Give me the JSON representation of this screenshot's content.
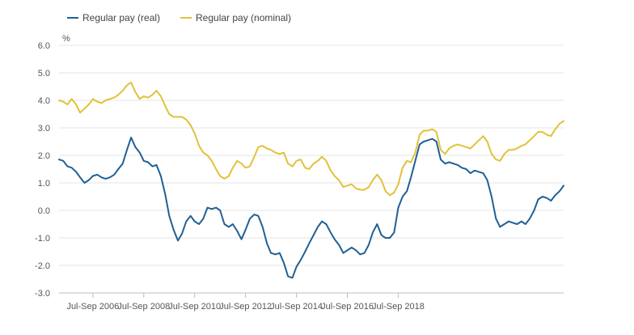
{
  "chart_data": {
    "type": "line",
    "ylabel": "%",
    "ylim": [
      -3.0,
      6.0
    ],
    "yticks": [
      "6.0",
      "5.0",
      "4.0",
      "3.0",
      "2.0",
      "1.0",
      "0.0",
      "-1.0",
      "-2.0",
      "-3.0"
    ],
    "xticks": [
      "Jul-Sep 2006",
      "Jul-Sep 2008",
      "Jul-Sep 2010",
      "Jul-Sep 2012",
      "Jul-Sep 2014",
      "Jul-Sep 2016",
      "Jul-Sep 2018"
    ],
    "grid": "horizontal",
    "legend": "top-left",
    "series": [
      {
        "name": "Regular pay (real)",
        "color": "#206095",
        "values": [
          [
            2005.25,
            1.85
          ],
          [
            2005.42,
            1.8
          ],
          [
            2005.58,
            1.6
          ],
          [
            2005.75,
            1.55
          ],
          [
            2005.92,
            1.4
          ],
          [
            2006.08,
            1.2
          ],
          [
            2006.25,
            1.0
          ],
          [
            2006.42,
            1.1
          ],
          [
            2006.58,
            1.25
          ],
          [
            2006.75,
            1.3
          ],
          [
            2006.92,
            1.2
          ],
          [
            2007.08,
            1.15
          ],
          [
            2007.25,
            1.2
          ],
          [
            2007.42,
            1.3
          ],
          [
            2007.58,
            1.5
          ],
          [
            2007.75,
            1.7
          ],
          [
            2007.92,
            2.2
          ],
          [
            2008.08,
            2.65
          ],
          [
            2008.25,
            2.3
          ],
          [
            2008.42,
            2.1
          ],
          [
            2008.58,
            1.8
          ],
          [
            2008.75,
            1.75
          ],
          [
            2008.92,
            1.6
          ],
          [
            2009.08,
            1.65
          ],
          [
            2009.25,
            1.25
          ],
          [
            2009.42,
            0.6
          ],
          [
            2009.58,
            -0.2
          ],
          [
            2009.75,
            -0.7
          ],
          [
            2009.92,
            -1.1
          ],
          [
            2010.08,
            -0.85
          ],
          [
            2010.25,
            -0.4
          ],
          [
            2010.42,
            -0.2
          ],
          [
            2010.58,
            -0.4
          ],
          [
            2010.75,
            -0.5
          ],
          [
            2010.92,
            -0.3
          ],
          [
            2011.08,
            0.1
          ],
          [
            2011.25,
            0.05
          ],
          [
            2011.42,
            0.1
          ],
          [
            2011.58,
            0.0
          ],
          [
            2011.75,
            -0.5
          ],
          [
            2011.92,
            -0.6
          ],
          [
            2012.08,
            -0.5
          ],
          [
            2012.25,
            -0.75
          ],
          [
            2012.42,
            -1.05
          ],
          [
            2012.58,
            -0.7
          ],
          [
            2012.75,
            -0.3
          ],
          [
            2012.92,
            -0.15
          ],
          [
            2013.08,
            -0.2
          ],
          [
            2013.25,
            -0.6
          ],
          [
            2013.42,
            -1.2
          ],
          [
            2013.58,
            -1.55
          ],
          [
            2013.75,
            -1.6
          ],
          [
            2013.92,
            -1.55
          ],
          [
            2014.08,
            -1.9
          ],
          [
            2014.25,
            -2.4
          ],
          [
            2014.42,
            -2.45
          ],
          [
            2014.58,
            -2.05
          ],
          [
            2014.75,
            -1.8
          ],
          [
            2014.92,
            -1.5
          ],
          [
            2015.08,
            -1.2
          ],
          [
            2015.25,
            -0.9
          ],
          [
            2015.42,
            -0.6
          ],
          [
            2015.58,
            -0.4
          ],
          [
            2015.75,
            -0.5
          ],
          [
            2015.92,
            -0.8
          ],
          [
            2016.08,
            -1.05
          ],
          [
            2016.25,
            -1.25
          ],
          [
            2016.42,
            -1.55
          ],
          [
            2016.58,
            -1.45
          ],
          [
            2016.75,
            -1.35
          ],
          [
            2016.92,
            -1.45
          ],
          [
            2017.08,
            -1.6
          ],
          [
            2017.25,
            -1.55
          ],
          [
            2017.42,
            -1.25
          ],
          [
            2017.58,
            -0.8
          ],
          [
            2017.75,
            -0.5
          ],
          [
            2017.92,
            -0.9
          ],
          [
            2018.08,
            -1.0
          ],
          [
            2018.25,
            -1.0
          ],
          [
            2018.42,
            -0.8
          ],
          [
            2018.58,
            0.1
          ],
          [
            2018.75,
            0.5
          ],
          [
            2018.92,
            0.7
          ],
          [
            2019.08,
            1.2
          ],
          [
            2019.25,
            1.8
          ],
          [
            2019.42,
            2.4
          ],
          [
            2019.58,
            2.5
          ],
          [
            2019.75,
            2.55
          ],
          [
            2019.92,
            2.6
          ],
          [
            2020.08,
            2.5
          ],
          [
            2020.25,
            1.85
          ],
          [
            2020.42,
            1.7
          ],
          [
            2020.58,
            1.75
          ],
          [
            2020.75,
            1.7
          ],
          [
            2020.92,
            1.65
          ],
          [
            2021.08,
            1.55
          ],
          [
            2021.25,
            1.5
          ],
          [
            2021.42,
            1.35
          ],
          [
            2021.58,
            1.45
          ],
          [
            2021.75,
            1.4
          ],
          [
            2021.92,
            1.35
          ],
          [
            2022.08,
            1.1
          ],
          [
            2022.25,
            0.5
          ],
          [
            2022.42,
            -0.3
          ],
          [
            2022.58,
            -0.6
          ],
          [
            2022.75,
            -0.5
          ],
          [
            2022.92,
            -0.4
          ],
          [
            2023.08,
            -0.45
          ],
          [
            2023.25,
            -0.5
          ],
          [
            2023.42,
            -0.4
          ],
          [
            2023.58,
            -0.5
          ],
          [
            2023.75,
            -0.3
          ],
          [
            2023.92,
            0.0
          ],
          [
            2024.08,
            0.4
          ],
          [
            2024.25,
            0.5
          ],
          [
            2024.42,
            0.45
          ],
          [
            2024.58,
            0.35
          ],
          [
            2024.75,
            0.55
          ],
          [
            2024.92,
            0.7
          ],
          [
            2025.08,
            0.9
          ]
        ]
      },
      {
        "name": "Regular pay (nominal)",
        "color": "#e1c23a",
        "values": [
          [
            2005.25,
            4.0
          ],
          [
            2005.42,
            3.95
          ],
          [
            2005.58,
            3.85
          ],
          [
            2005.75,
            4.05
          ],
          [
            2005.92,
            3.85
          ],
          [
            2006.08,
            3.55
          ],
          [
            2006.25,
            3.7
          ],
          [
            2006.42,
            3.85
          ],
          [
            2006.58,
            4.05
          ],
          [
            2006.75,
            3.95
          ],
          [
            2006.92,
            3.9
          ],
          [
            2007.08,
            4.0
          ],
          [
            2007.25,
            4.05
          ],
          [
            2007.42,
            4.1
          ],
          [
            2007.58,
            4.2
          ],
          [
            2007.75,
            4.35
          ],
          [
            2007.92,
            4.55
          ],
          [
            2008.08,
            4.65
          ],
          [
            2008.25,
            4.3
          ],
          [
            2008.42,
            4.05
          ],
          [
            2008.58,
            4.15
          ],
          [
            2008.75,
            4.1
          ],
          [
            2008.92,
            4.2
          ],
          [
            2009.08,
            4.35
          ],
          [
            2009.25,
            4.15
          ],
          [
            2009.42,
            3.8
          ],
          [
            2009.58,
            3.5
          ],
          [
            2009.75,
            3.4
          ],
          [
            2009.92,
            3.4
          ],
          [
            2010.08,
            3.4
          ],
          [
            2010.25,
            3.3
          ],
          [
            2010.42,
            3.1
          ],
          [
            2010.58,
            2.8
          ],
          [
            2010.75,
            2.35
          ],
          [
            2010.92,
            2.1
          ],
          [
            2011.08,
            2.0
          ],
          [
            2011.25,
            1.8
          ],
          [
            2011.42,
            1.5
          ],
          [
            2011.58,
            1.25
          ],
          [
            2011.75,
            1.15
          ],
          [
            2011.92,
            1.25
          ],
          [
            2012.08,
            1.55
          ],
          [
            2012.25,
            1.8
          ],
          [
            2012.42,
            1.7
          ],
          [
            2012.58,
            1.55
          ],
          [
            2012.75,
            1.6
          ],
          [
            2012.92,
            1.95
          ],
          [
            2013.08,
            2.3
          ],
          [
            2013.25,
            2.35
          ],
          [
            2013.42,
            2.25
          ],
          [
            2013.58,
            2.2
          ],
          [
            2013.75,
            2.1
          ],
          [
            2013.92,
            2.05
          ],
          [
            2014.08,
            2.1
          ],
          [
            2014.25,
            1.7
          ],
          [
            2014.42,
            1.6
          ],
          [
            2014.58,
            1.8
          ],
          [
            2014.75,
            1.85
          ],
          [
            2014.92,
            1.55
          ],
          [
            2015.08,
            1.5
          ],
          [
            2015.25,
            1.7
          ],
          [
            2015.42,
            1.8
          ],
          [
            2015.58,
            1.95
          ],
          [
            2015.75,
            1.8
          ],
          [
            2015.92,
            1.45
          ],
          [
            2016.08,
            1.25
          ],
          [
            2016.25,
            1.1
          ],
          [
            2016.42,
            0.85
          ],
          [
            2016.58,
            0.9
          ],
          [
            2016.75,
            0.95
          ],
          [
            2016.92,
            0.8
          ],
          [
            2017.08,
            0.75
          ],
          [
            2017.25,
            0.75
          ],
          [
            2017.42,
            0.85
          ],
          [
            2017.58,
            1.1
          ],
          [
            2017.75,
            1.3
          ],
          [
            2017.92,
            1.1
          ],
          [
            2018.08,
            0.7
          ],
          [
            2018.25,
            0.55
          ],
          [
            2018.42,
            0.65
          ],
          [
            2018.58,
            0.95
          ],
          [
            2018.75,
            1.55
          ],
          [
            2018.92,
            1.8
          ],
          [
            2019.08,
            1.75
          ],
          [
            2019.25,
            2.1
          ],
          [
            2019.42,
            2.75
          ],
          [
            2019.58,
            2.9
          ],
          [
            2019.75,
            2.9
          ],
          [
            2019.92,
            2.95
          ],
          [
            2020.08,
            2.85
          ],
          [
            2020.25,
            2.2
          ],
          [
            2020.42,
            2.05
          ],
          [
            2020.58,
            2.25
          ],
          [
            2020.75,
            2.35
          ],
          [
            2020.92,
            2.4
          ],
          [
            2021.08,
            2.35
          ],
          [
            2021.25,
            2.3
          ],
          [
            2021.42,
            2.25
          ],
          [
            2021.58,
            2.4
          ],
          [
            2021.75,
            2.55
          ],
          [
            2021.92,
            2.7
          ],
          [
            2022.08,
            2.5
          ],
          [
            2022.25,
            2.05
          ],
          [
            2022.42,
            1.85
          ],
          [
            2022.58,
            1.8
          ],
          [
            2022.75,
            2.05
          ],
          [
            2022.92,
            2.2
          ],
          [
            2023.08,
            2.2
          ],
          [
            2023.25,
            2.25
          ],
          [
            2023.42,
            2.35
          ],
          [
            2023.58,
            2.4
          ],
          [
            2023.75,
            2.55
          ],
          [
            2023.92,
            2.7
          ],
          [
            2024.08,
            2.85
          ],
          [
            2024.25,
            2.85
          ],
          [
            2024.42,
            2.75
          ],
          [
            2024.58,
            2.7
          ],
          [
            2024.75,
            2.95
          ],
          [
            2024.92,
            3.15
          ],
          [
            2025.08,
            3.25
          ]
        ]
      }
    ]
  }
}
